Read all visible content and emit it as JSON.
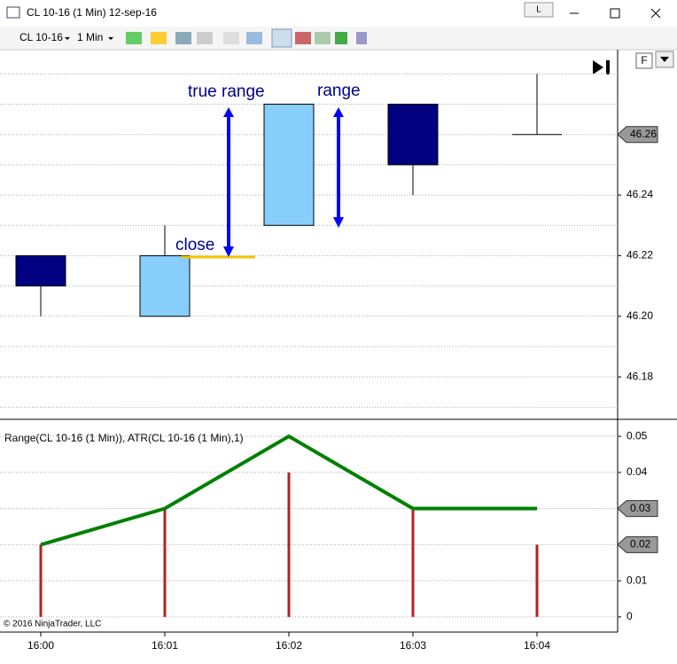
{
  "window": {
    "title": "CL 10-16 (1 Min)  12-sep-16",
    "button": "L"
  },
  "toolbar": {
    "instrument": "CL 10-16",
    "interval": "1 Min"
  },
  "chart_data": [
    {
      "type": "candlestick",
      "categories": [
        "16:00",
        "16:01",
        "16:02",
        "16:03",
        "16:04"
      ],
      "open": [
        46.22,
        46.2,
        46.23,
        46.27,
        46.26
      ],
      "high": [
        46.22,
        46.23,
        46.27,
        46.27,
        46.28
      ],
      "low": [
        46.2,
        46.2,
        46.23,
        46.24,
        46.26
      ],
      "close": [
        46.21,
        46.22,
        46.27,
        46.25,
        46.26
      ],
      "up_color": "#87cefa",
      "down_color": "#000080",
      "ylim": [
        46.166,
        46.288
      ],
      "yticks": [
        46.18,
        {
          "value": 46.2,
          "label": "46.20"
        },
        46.22,
        46.24,
        46.26
      ],
      "minor_yticks": [
        46.17,
        46.19,
        46.21,
        46.23,
        46.25,
        46.27,
        46.28
      ],
      "last_price": 46.26,
      "annotations": [
        "true range",
        "range",
        "close"
      ],
      "flag": "F"
    },
    {
      "type": "indicator",
      "title": "Range(CL 10-16 (1 Min)), ATR(CL 10-16 (1 Min),1)",
      "series": [
        {
          "style": "bar",
          "color": "#b22222",
          "values": [
            0.02,
            0.03,
            0.04,
            0.03,
            0.02
          ]
        },
        {
          "style": "line",
          "color": "#008000",
          "values": [
            0.02,
            0.03,
            0.05,
            0.03,
            0.03
          ]
        }
      ],
      "ylim": [
        -0.0042,
        0.0547
      ],
      "yticks": [
        0,
        0.01,
        0.02,
        0.03,
        0.04,
        0.05
      ],
      "copyright": "© 2016 NinjaTrader, LLC"
    }
  ]
}
